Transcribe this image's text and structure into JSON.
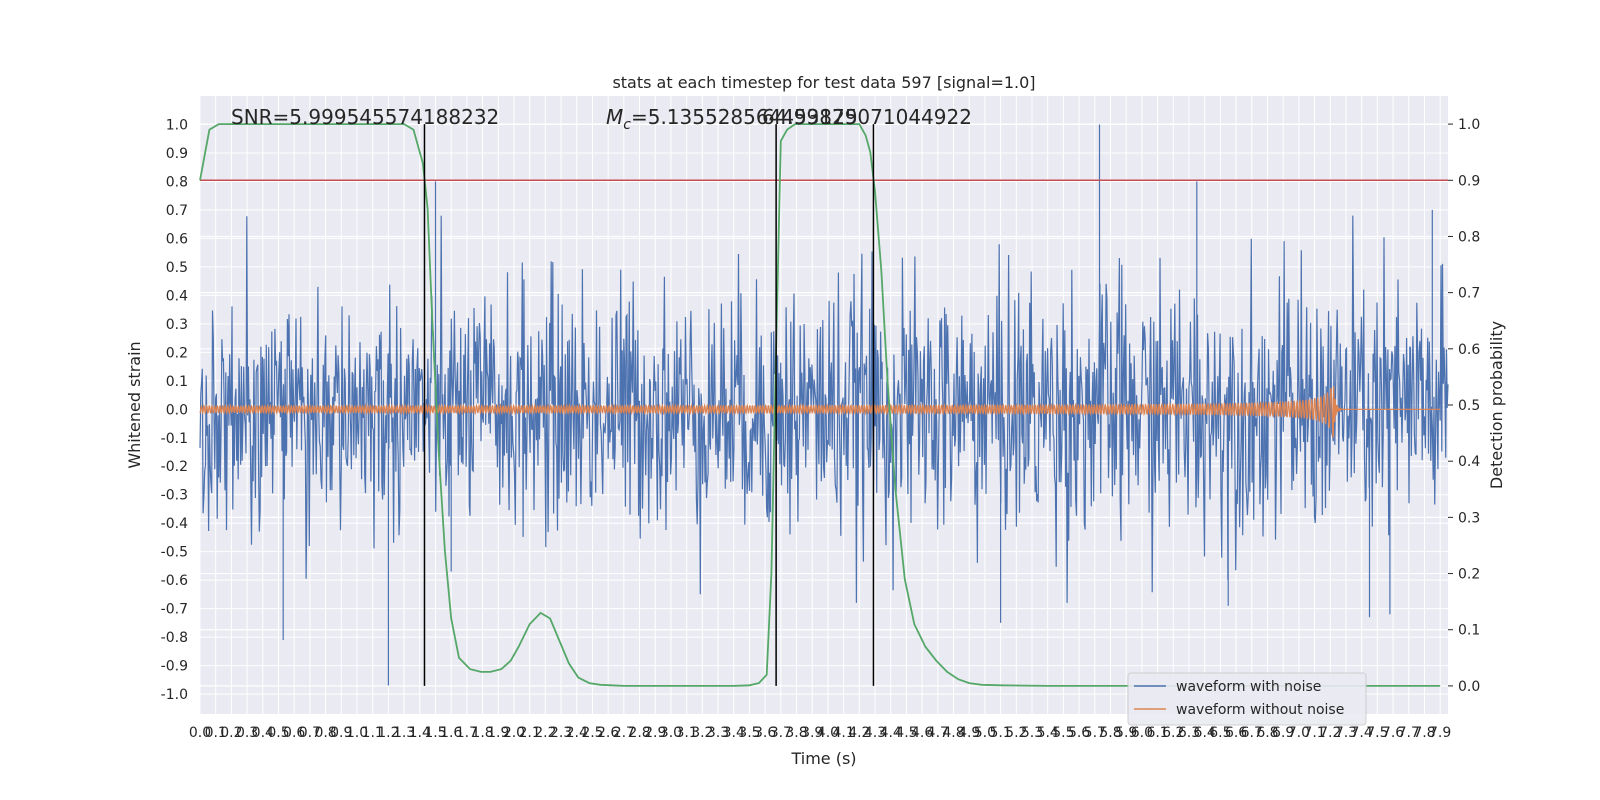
{
  "chart_data": {
    "type": "line",
    "title": "stats at each timestep for test data 597 [signal=1.0]",
    "xlabel": "Time (s)",
    "ylabel": "Whitened strain",
    "y2label": "Detection probability",
    "xlim": [
      0.0,
      7.95
    ],
    "ylim": [
      -1.07,
      1.1
    ],
    "y2lim": [
      -0.05,
      1.05
    ],
    "yticks": [
      -1.0,
      -0.9,
      -0.8,
      -0.7,
      -0.6,
      -0.5,
      -0.4,
      -0.3,
      -0.2,
      -0.1,
      0.0,
      0.1,
      0.2,
      0.3,
      0.4,
      0.5,
      0.6,
      0.7,
      0.8,
      0.9,
      1.0
    ],
    "y2ticks": [
      0.0,
      0.1,
      0.2,
      0.3,
      0.4,
      0.5,
      0.6,
      0.7,
      0.8,
      0.9,
      1.0
    ],
    "xtick_step": 0.1,
    "xtick_count": 80,
    "grid": true,
    "legend_position": "lower-right",
    "annotations": {
      "snr": "SNR=5.999545574188232",
      "mc_symbol": "M",
      "mc_sub": "c",
      "mc": "=5.135528564453125",
      "extra": "64.99879071044922"
    },
    "threshold": {
      "value": 0.9,
      "axis": "y2",
      "color": "#c44e52"
    },
    "vlines": [
      1.43,
      3.67,
      4.29
    ],
    "series": [
      {
        "name": "waveform with noise",
        "color": "#4c72b0",
        "kind": "noise",
        "envelope": [
          0.45,
          0.48,
          0.47,
          0.46,
          0.45,
          0.48,
          0.5,
          0.46,
          0.47,
          0.49,
          0.5,
          0.48,
          0.5,
          0.52,
          0.51,
          0.5,
          0.49,
          0.5,
          0.52,
          0.5
        ],
        "peaks": [
          {
            "t": 5.73,
            "v": 1.0
          },
          {
            "t": 1.5,
            "v": 0.8
          },
          {
            "t": 6.35,
            "v": 0.8
          },
          {
            "t": 7.85,
            "v": 0.7
          },
          {
            "t": 1.2,
            "v": -0.97
          },
          {
            "t": 0.53,
            "v": -0.81
          },
          {
            "t": 3.67,
            "v": -0.7
          },
          {
            "t": 6.55,
            "v": -0.69
          },
          {
            "t": 7.45,
            "v": -0.73
          },
          {
            "t": 5.1,
            "v": -0.75
          },
          {
            "t": 7.58,
            "v": -0.72
          },
          {
            "t": 1.6,
            "v": -0.57
          }
        ]
      },
      {
        "name": "waveform without noise",
        "color": "#dd8452",
        "kind": "chirp",
        "t_merge": 7.22,
        "amp_start": 0.01,
        "amp_peak": 0.11
      },
      {
        "name": "",
        "color": "#55a868",
        "axis": "y2",
        "x": [
          0.0,
          0.06,
          0.12,
          0.2,
          0.3,
          0.5,
          0.8,
          1.0,
          1.2,
          1.3,
          1.36,
          1.42,
          1.45,
          1.48,
          1.52,
          1.56,
          1.6,
          1.65,
          1.72,
          1.79,
          1.85,
          1.92,
          1.98,
          2.03,
          2.1,
          2.17,
          2.23,
          2.29,
          2.35,
          2.41,
          2.48,
          2.55,
          2.62,
          2.7,
          2.8,
          3.0,
          3.2,
          3.4,
          3.5,
          3.56,
          3.61,
          3.64,
          3.67,
          3.7,
          3.74,
          3.79,
          3.85,
          3.95,
          4.1,
          4.2,
          4.24,
          4.27,
          4.3,
          4.34,
          4.38,
          4.43,
          4.49,
          4.55,
          4.62,
          4.69,
          4.76,
          4.83,
          4.9,
          4.98,
          5.1,
          5.4,
          6.0,
          6.5,
          7.0,
          7.5,
          7.9
        ],
        "values": [
          0.9,
          0.99,
          1.0,
          1.0,
          1.0,
          1.0,
          1.0,
          1.0,
          1.0,
          1.0,
          0.99,
          0.93,
          0.85,
          0.65,
          0.42,
          0.24,
          0.12,
          0.05,
          0.03,
          0.025,
          0.025,
          0.03,
          0.045,
          0.07,
          0.11,
          0.13,
          0.12,
          0.08,
          0.04,
          0.015,
          0.005,
          0.002,
          0.001,
          0.0,
          0.0,
          0.0,
          0.0,
          0.0,
          0.001,
          0.005,
          0.02,
          0.2,
          0.6,
          0.97,
          0.99,
          1.0,
          1.0,
          1.0,
          1.0,
          1.0,
          0.98,
          0.95,
          0.88,
          0.74,
          0.54,
          0.35,
          0.19,
          0.11,
          0.07,
          0.045,
          0.025,
          0.012,
          0.005,
          0.002,
          0.001,
          0.0,
          0.0,
          0.0,
          0.0,
          0.0,
          0.0
        ]
      }
    ]
  }
}
